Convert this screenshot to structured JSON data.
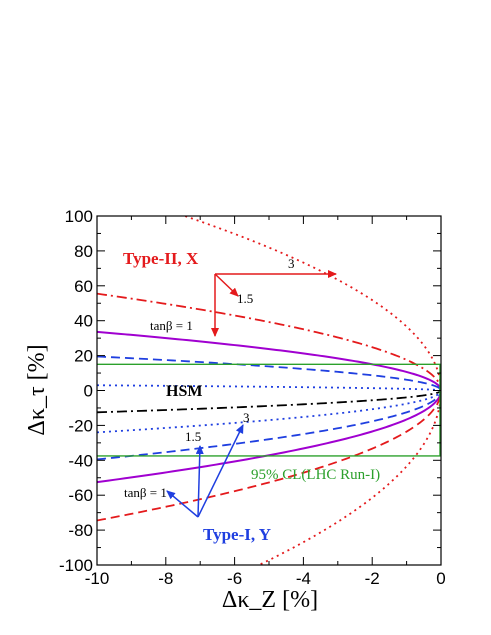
{
  "chart_data": {
    "type": "line",
    "xlabel": "Δκ_Z [%]",
    "ylabel": "Δκ_τ [%]",
    "xlim": [
      -10,
      0
    ],
    "ylim": [
      -100,
      100
    ],
    "x_ticks": [
      -10,
      -8,
      -6,
      -4,
      -2,
      0
    ],
    "y_ticks": [
      -100,
      -80,
      -60,
      -40,
      -20,
      0,
      20,
      40,
      60,
      80,
      100
    ],
    "grid": false,
    "legend": "none",
    "curve_form": "y = a * sqrt(-x), with a branch of 4 lines in the upper half-plane (Type-II, X) and a mirrored branch in the lower half-plane (Type-I, Y)",
    "series": [
      {
        "group": "Type-II, X",
        "tanb": "1",
        "style": "solid",
        "color": "#a000d0",
        "x": [
          -10,
          -8,
          -6,
          -4,
          -2,
          -0.5,
          0
        ],
        "y": [
          33.6,
          30.0,
          26.0,
          21.2,
          15.0,
          7.5,
          0
        ]
      },
      {
        "group": "Type-II, X",
        "tanb": "1.5",
        "style": "dash-dot",
        "color": "#e41a1c",
        "x": [
          -10,
          -8,
          -6,
          -4,
          -2,
          -0.5,
          0
        ],
        "y": [
          55.5,
          49.6,
          43.0,
          35.1,
          24.8,
          12.4,
          0
        ]
      },
      {
        "group": "Type-II, X",
        "tanb": "3",
        "style": "dotted",
        "color": "#e41a1c",
        "x": [
          -7.6,
          -6,
          -4,
          -2,
          -0.5,
          0
        ],
        "y": [
          101,
          89.8,
          73.3,
          51.8,
          25.9,
          0
        ]
      },
      {
        "group": "Type-II, X",
        "tanb": "",
        "style": "dashed",
        "color": "#1f3fe0",
        "x": [
          -10,
          -8,
          -6,
          -4,
          -2,
          -0.5,
          0
        ],
        "y": [
          19.5,
          17.4,
          15.1,
          12.3,
          8.7,
          4.4,
          0
        ]
      },
      {
        "group": "Type-I, Y",
        "tanb": "1",
        "style": "solid",
        "color": "#a000d0",
        "x": [
          -10,
          -8,
          -6,
          -4,
          -2,
          -0.5,
          0
        ],
        "y": [
          -52.5,
          -47.0,
          -40.7,
          -33.2,
          -23.5,
          -11.7,
          0
        ]
      },
      {
        "group": "Type-I, Y",
        "tanb": "1.5",
        "style": "dashed",
        "color": "#1f3fe0",
        "x": [
          -10,
          -8,
          -6,
          -4,
          -2,
          -0.5,
          0
        ],
        "y": [
          -39.5,
          -35.3,
          -30.6,
          -25.0,
          -17.7,
          -8.8,
          0
        ]
      },
      {
        "group": "Type-I, Y",
        "tanb": "3",
        "style": "dotted",
        "color": "#1f3fe0",
        "x": [
          -10,
          -8,
          -6,
          -4,
          -2,
          -0.5,
          0
        ],
        "y": [
          -24.0,
          -21.5,
          -18.6,
          -15.2,
          -10.7,
          -5.4,
          0
        ]
      },
      {
        "group": "Type-I, Y",
        "tanb": "",
        "style": "dashed",
        "color": "#e41a1c",
        "x": [
          -10,
          -8,
          -6,
          -4,
          -2,
          -0.5,
          0
        ],
        "y": [
          -74.5,
          -66.6,
          -57.7,
          -47.1,
          -33.3,
          -16.7,
          0
        ]
      },
      {
        "group": "Type-I, Y",
        "tanb": "",
        "style": "dotted",
        "color": "#e41a1c",
        "x": [
          -5.4,
          -4,
          -2,
          -0.5,
          0
        ],
        "y": [
          -101,
          -86.9,
          -61.4,
          -30.7,
          0
        ]
      },
      {
        "group": "HSM",
        "tanb": "",
        "style": "dotted",
        "color": "#1f3fe0",
        "x": [
          -10,
          -8,
          -6,
          -4,
          -2,
          -0.5,
          0
        ],
        "y": [
          3.0,
          2.9,
          2.8,
          2.6,
          2.3,
          1.5,
          0
        ]
      },
      {
        "group": "HSM",
        "tanb": "",
        "style": "dash-dot",
        "color": "#000000",
        "x": [
          -10,
          -8,
          -6,
          -4,
          -2,
          -0.5,
          0
        ],
        "y": [
          -12.5,
          -11.2,
          -9.7,
          -7.9,
          -5.6,
          -2.8,
          0
        ]
      }
    ],
    "cl_band": {
      "label": "95% CL (LHC Run-I)",
      "color": "#2ca02c",
      "y_upper": 15,
      "y_lower": -37.5,
      "x_left": -10,
      "x_right": 0
    },
    "annotations": {
      "type2_label": "Type-II, X",
      "type1_label": "Type-I, Y",
      "hsm_label": "HSM",
      "type2_tanb1": "tanβ = 1",
      "type2_tanb15": "1.5",
      "type2_tanb3": "3",
      "type1_tanb1": "tanβ = 1",
      "type1_tanb15": "1.5",
      "type1_tanb3": "3",
      "cl_label": "95% CL(LHC Run-I)"
    },
    "colors": {
      "red": "#e41a1c",
      "blue": "#1f3fe0",
      "purple": "#a000d0",
      "green": "#2ca02c",
      "black": "#000000"
    }
  }
}
